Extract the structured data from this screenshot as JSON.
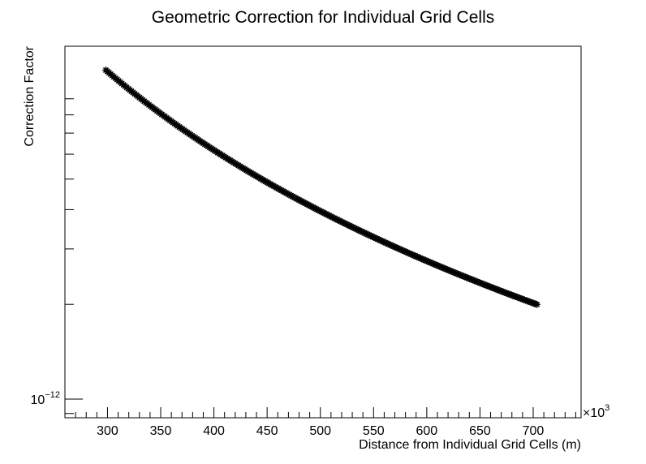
{
  "chart_data": {
    "type": "scatter",
    "title": "Geometric Correction for Individual Grid Cells",
    "xlabel": "Distance from Individual Grid Cells (m)",
    "ylabel": "Correction Factor",
    "x_multiplier_label": "×10",
    "x_multiplier_exponent": "3",
    "xlim": [
      260,
      745
    ],
    "x_ticks": [
      {
        "value": 300,
        "label": "300"
      },
      {
        "value": 350,
        "label": "350"
      },
      {
        "value": 400,
        "label": "400"
      },
      {
        "value": 450,
        "label": "450"
      },
      {
        "value": 500,
        "label": "500"
      },
      {
        "value": 550,
        "label": "550"
      },
      {
        "value": 600,
        "label": "600"
      },
      {
        "value": 650,
        "label": "650"
      },
      {
        "value": 700,
        "label": "700"
      }
    ],
    "y_scale": "log",
    "y_ticks": [
      {
        "value": 1e-12,
        "base": "10",
        "exponent": "−12"
      }
    ],
    "marker": "asterisk",
    "grid": false,
    "legend": "none",
    "x_range_points": [
      298.5,
      704.5
    ],
    "y_range_points_relative": [
      11.1,
      2.0
    ],
    "relation": "y ∝ 1/x²"
  }
}
